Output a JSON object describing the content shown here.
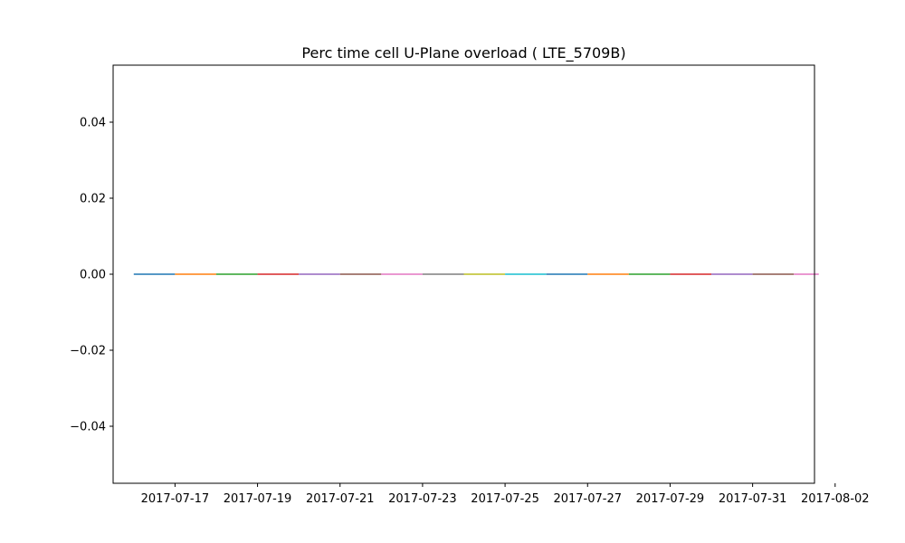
{
  "chart_data": {
    "type": "line",
    "title": "Perc time cell U-Plane overload ( LTE_5709B)",
    "xlabel": "",
    "ylabel": "",
    "x_axis_type": "date",
    "x_range": [
      "2017-07-15T12:00",
      "2017-08-01T12:00"
    ],
    "x_ticks": [
      "2017-07-17",
      "2017-07-19",
      "2017-07-21",
      "2017-07-23",
      "2017-07-25",
      "2017-07-27",
      "2017-07-29",
      "2017-07-31",
      "2017-08-02"
    ],
    "ylim": [
      -0.055,
      0.055
    ],
    "y_ticks": [
      0.04,
      0.02,
      0.0,
      -0.02,
      -0.04
    ],
    "y_tick_labels": [
      "0.04",
      "0.02",
      "0.00",
      "−0.02",
      "−0.04"
    ],
    "grid": false,
    "legend": "none",
    "series": [
      {
        "color": "#1f77b4",
        "x": [
          "2017-07-16",
          "2017-07-17"
        ],
        "y": [
          0,
          0
        ]
      },
      {
        "color": "#ff7f0e",
        "x": [
          "2017-07-17",
          "2017-07-18"
        ],
        "y": [
          0,
          0
        ]
      },
      {
        "color": "#2ca02c",
        "x": [
          "2017-07-18",
          "2017-07-19"
        ],
        "y": [
          0,
          0
        ]
      },
      {
        "color": "#d62728",
        "x": [
          "2017-07-19",
          "2017-07-20"
        ],
        "y": [
          0,
          0
        ]
      },
      {
        "color": "#9467bd",
        "x": [
          "2017-07-20",
          "2017-07-21"
        ],
        "y": [
          0,
          0
        ]
      },
      {
        "color": "#8c564b",
        "x": [
          "2017-07-21",
          "2017-07-22"
        ],
        "y": [
          0,
          0
        ]
      },
      {
        "color": "#e377c2",
        "x": [
          "2017-07-22",
          "2017-07-23"
        ],
        "y": [
          0,
          0
        ]
      },
      {
        "color": "#7f7f7f",
        "x": [
          "2017-07-23",
          "2017-07-24"
        ],
        "y": [
          0,
          0
        ]
      },
      {
        "color": "#bcbd22",
        "x": [
          "2017-07-24",
          "2017-07-25"
        ],
        "y": [
          0,
          0
        ]
      },
      {
        "color": "#17becf",
        "x": [
          "2017-07-25",
          "2017-07-26"
        ],
        "y": [
          0,
          0
        ]
      },
      {
        "color": "#1f77b4",
        "x": [
          "2017-07-26",
          "2017-07-27"
        ],
        "y": [
          0,
          0
        ]
      },
      {
        "color": "#ff7f0e",
        "x": [
          "2017-07-27",
          "2017-07-28"
        ],
        "y": [
          0,
          0
        ]
      },
      {
        "color": "#2ca02c",
        "x": [
          "2017-07-28",
          "2017-07-29"
        ],
        "y": [
          0,
          0
        ]
      },
      {
        "color": "#d62728",
        "x": [
          "2017-07-29",
          "2017-07-30"
        ],
        "y": [
          0,
          0
        ]
      },
      {
        "color": "#9467bd",
        "x": [
          "2017-07-30",
          "2017-07-31"
        ],
        "y": [
          0,
          0
        ]
      },
      {
        "color": "#8c564b",
        "x": [
          "2017-07-31",
          "2017-08-01"
        ],
        "y": [
          0,
          0
        ]
      },
      {
        "color": "#e377c2",
        "x": [
          "2017-08-01",
          "2017-08-01T14:30"
        ],
        "y": [
          0,
          0
        ]
      }
    ]
  }
}
